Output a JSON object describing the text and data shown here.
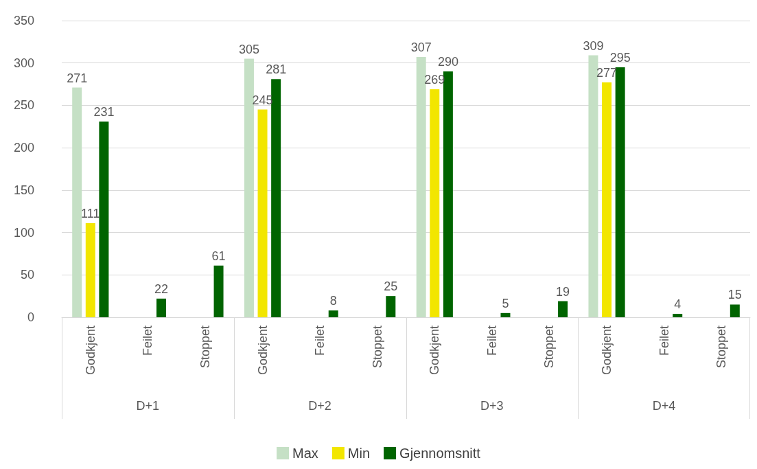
{
  "chart_data": {
    "type": "bar",
    "categories": [
      "Godkjent",
      "Feilet",
      "Stoppet",
      "Godkjent",
      "Feilet",
      "Stoppet",
      "Godkjent",
      "Feilet",
      "Stoppet",
      "Godkjent",
      "Feilet",
      "Stoppet"
    ],
    "annotations": [
      "D+1",
      "D+2",
      "D+3",
      "D+4"
    ],
    "series": [
      {
        "name": "Max",
        "color": "#c5e0c5",
        "values": [
          271,
          null,
          null,
          305,
          null,
          null,
          307,
          null,
          null,
          309,
          null,
          null
        ]
      },
      {
        "name": "Min",
        "color": "#f2e600",
        "values": [
          111,
          null,
          null,
          245,
          null,
          null,
          269,
          null,
          null,
          277,
          null,
          null
        ]
      },
      {
        "name": "Gjennomsnitt",
        "color": "#006400",
        "values": [
          231,
          22,
          61,
          281,
          8,
          25,
          290,
          5,
          19,
          295,
          4,
          15
        ]
      }
    ],
    "ylim": [
      0,
      350
    ],
    "yticks": [
      0,
      50,
      100,
      150,
      200,
      250,
      300,
      350
    ],
    "grid": "y",
    "legend": "bottom",
    "data_labels": true
  }
}
